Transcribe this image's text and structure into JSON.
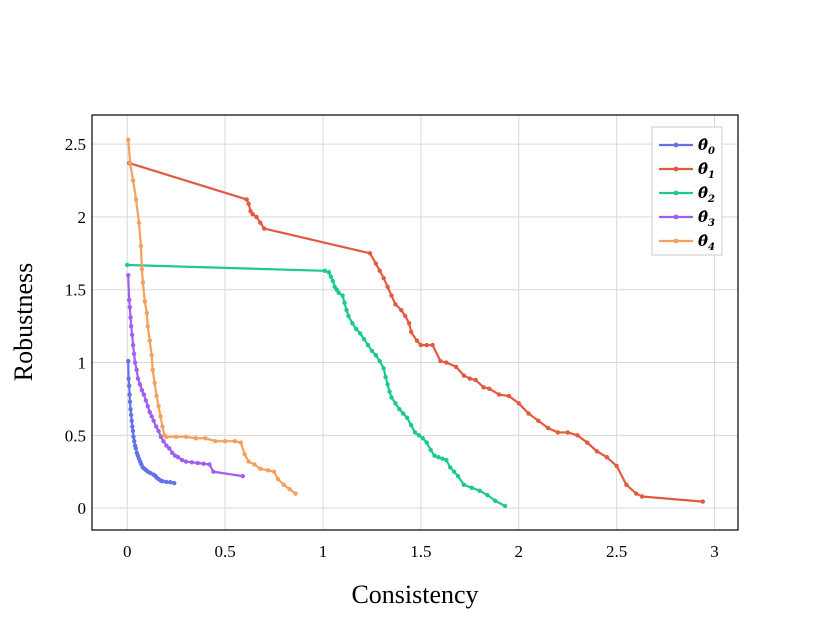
{
  "chart_data": {
    "type": "line",
    "title": "",
    "xlabel": "Consistency",
    "ylabel": "Robustness",
    "xlim": [
      -0.18,
      3.12
    ],
    "ylim": [
      -0.15,
      2.7
    ],
    "grid": true,
    "legend_position": "top-right",
    "x_ticks": [
      {
        "value": 0,
        "label": "0"
      },
      {
        "value": 0.5,
        "label": "0.5"
      },
      {
        "value": 1,
        "label": "1"
      },
      {
        "value": 1.5,
        "label": "1.5"
      },
      {
        "value": 2,
        "label": "2"
      },
      {
        "value": 2.5,
        "label": "2.5"
      },
      {
        "value": 3,
        "label": "3"
      }
    ],
    "y_ticks": [
      {
        "value": 0,
        "label": "0"
      },
      {
        "value": 0.5,
        "label": "0.5"
      },
      {
        "value": 1,
        "label": "1"
      },
      {
        "value": 1.5,
        "label": "1.5"
      },
      {
        "value": 2,
        "label": "2"
      },
      {
        "value": 2.5,
        "label": "2.5"
      }
    ],
    "series": [
      {
        "name": "θ̂₀",
        "base": "θ̂",
        "sub": "0",
        "color": "#6272e8",
        "points": [
          [
            0.005,
            1.01
          ],
          [
            0.007,
            0.89
          ],
          [
            0.01,
            0.84
          ],
          [
            0.012,
            0.78
          ],
          [
            0.014,
            0.73
          ],
          [
            0.017,
            0.68
          ],
          [
            0.02,
            0.64
          ],
          [
            0.023,
            0.6
          ],
          [
            0.026,
            0.56
          ],
          [
            0.029,
            0.53
          ],
          [
            0.032,
            0.49
          ],
          [
            0.036,
            0.46
          ],
          [
            0.04,
            0.43
          ],
          [
            0.044,
            0.41
          ],
          [
            0.049,
            0.38
          ],
          [
            0.054,
            0.36
          ],
          [
            0.06,
            0.34
          ],
          [
            0.066,
            0.32
          ],
          [
            0.072,
            0.3
          ],
          [
            0.08,
            0.28
          ],
          [
            0.088,
            0.27
          ],
          [
            0.097,
            0.26
          ],
          [
            0.106,
            0.25
          ],
          [
            0.12,
            0.24
          ],
          [
            0.135,
            0.23
          ],
          [
            0.145,
            0.22
          ],
          [
            0.15,
            0.21
          ],
          [
            0.16,
            0.2
          ],
          [
            0.17,
            0.19
          ],
          [
            0.18,
            0.185
          ],
          [
            0.2,
            0.18
          ],
          [
            0.22,
            0.178
          ],
          [
            0.24,
            0.172
          ]
        ]
      },
      {
        "name": "θ̂₁",
        "base": "θ̂",
        "sub": "1",
        "color": "#e25a40",
        "points": [
          [
            0.01,
            2.37
          ],
          [
            0.61,
            2.12
          ],
          [
            0.62,
            2.09
          ],
          [
            0.63,
            2.04
          ],
          [
            0.64,
            2.02
          ],
          [
            0.66,
            2.0
          ],
          [
            0.68,
            1.96
          ],
          [
            0.7,
            1.92
          ],
          [
            1.24,
            1.75
          ],
          [
            1.27,
            1.68
          ],
          [
            1.29,
            1.63
          ],
          [
            1.31,
            1.58
          ],
          [
            1.33,
            1.52
          ],
          [
            1.35,
            1.46
          ],
          [
            1.37,
            1.4
          ],
          [
            1.4,
            1.36
          ],
          [
            1.42,
            1.32
          ],
          [
            1.44,
            1.27
          ],
          [
            1.45,
            1.21
          ],
          [
            1.48,
            1.15
          ],
          [
            1.5,
            1.12
          ],
          [
            1.53,
            1.12
          ],
          [
            1.56,
            1.12
          ],
          [
            1.6,
            1.01
          ],
          [
            1.63,
            1.0
          ],
          [
            1.68,
            0.97
          ],
          [
            1.72,
            0.91
          ],
          [
            1.75,
            0.89
          ],
          [
            1.78,
            0.88
          ],
          [
            1.82,
            0.83
          ],
          [
            1.85,
            0.82
          ],
          [
            1.9,
            0.78
          ],
          [
            1.95,
            0.77
          ],
          [
            2.0,
            0.72
          ],
          [
            2.05,
            0.65
          ],
          [
            2.1,
            0.6
          ],
          [
            2.15,
            0.55
          ],
          [
            2.2,
            0.52
          ],
          [
            2.25,
            0.52
          ],
          [
            2.3,
            0.5
          ],
          [
            2.35,
            0.45
          ],
          [
            2.4,
            0.39
          ],
          [
            2.45,
            0.35
          ],
          [
            2.5,
            0.29
          ],
          [
            2.55,
            0.16
          ],
          [
            2.6,
            0.1
          ],
          [
            2.63,
            0.08
          ],
          [
            2.94,
            0.045
          ]
        ]
      },
      {
        "name": "θ̂₂",
        "base": "θ̂",
        "sub": "2",
        "color": "#1dc891",
        "points": [
          [
            0.0,
            1.67
          ],
          [
            1.01,
            1.63
          ],
          [
            1.03,
            1.62
          ],
          [
            1.04,
            1.59
          ],
          [
            1.05,
            1.56
          ],
          [
            1.06,
            1.52
          ],
          [
            1.07,
            1.5
          ],
          [
            1.08,
            1.48
          ],
          [
            1.1,
            1.46
          ],
          [
            1.11,
            1.41
          ],
          [
            1.12,
            1.36
          ],
          [
            1.13,
            1.32
          ],
          [
            1.15,
            1.27
          ],
          [
            1.17,
            1.23
          ],
          [
            1.19,
            1.2
          ],
          [
            1.21,
            1.16
          ],
          [
            1.23,
            1.12
          ],
          [
            1.25,
            1.08
          ],
          [
            1.27,
            1.05
          ],
          [
            1.29,
            1.01
          ],
          [
            1.31,
            0.96
          ],
          [
            1.32,
            0.9
          ],
          [
            1.33,
            0.85
          ],
          [
            1.34,
            0.8
          ],
          [
            1.35,
            0.76
          ],
          [
            1.37,
            0.72
          ],
          [
            1.39,
            0.68
          ],
          [
            1.41,
            0.65
          ],
          [
            1.43,
            0.62
          ],
          [
            1.45,
            0.57
          ],
          [
            1.47,
            0.52
          ],
          [
            1.49,
            0.5
          ],
          [
            1.51,
            0.48
          ],
          [
            1.53,
            0.45
          ],
          [
            1.55,
            0.4
          ],
          [
            1.57,
            0.36
          ],
          [
            1.59,
            0.35
          ],
          [
            1.61,
            0.34
          ],
          [
            1.63,
            0.33
          ],
          [
            1.65,
            0.28
          ],
          [
            1.67,
            0.25
          ],
          [
            1.69,
            0.22
          ],
          [
            1.72,
            0.16
          ],
          [
            1.76,
            0.14
          ],
          [
            1.8,
            0.12
          ],
          [
            1.84,
            0.09
          ],
          [
            1.88,
            0.05
          ],
          [
            1.93,
            0.015
          ]
        ]
      },
      {
        "name": "θ̂₃",
        "base": "θ̂",
        "sub": "3",
        "color": "#a05ff0",
        "points": [
          [
            0.005,
            1.6
          ],
          [
            0.01,
            1.43
          ],
          [
            0.013,
            1.38
          ],
          [
            0.017,
            1.31
          ],
          [
            0.02,
            1.25
          ],
          [
            0.025,
            1.19
          ],
          [
            0.03,
            1.12
          ],
          [
            0.035,
            1.06
          ],
          [
            0.04,
            1.0
          ],
          [
            0.048,
            0.95
          ],
          [
            0.055,
            0.89
          ],
          [
            0.065,
            0.85
          ],
          [
            0.075,
            0.81
          ],
          [
            0.085,
            0.78
          ],
          [
            0.095,
            0.74
          ],
          [
            0.105,
            0.7
          ],
          [
            0.115,
            0.66
          ],
          [
            0.125,
            0.63
          ],
          [
            0.135,
            0.6
          ],
          [
            0.148,
            0.56
          ],
          [
            0.16,
            0.53
          ],
          [
            0.172,
            0.49
          ],
          [
            0.185,
            0.46
          ],
          [
            0.2,
            0.43
          ],
          [
            0.215,
            0.41
          ],
          [
            0.23,
            0.38
          ],
          [
            0.245,
            0.36
          ],
          [
            0.26,
            0.35
          ],
          [
            0.28,
            0.33
          ],
          [
            0.3,
            0.32
          ],
          [
            0.33,
            0.315
          ],
          [
            0.36,
            0.31
          ],
          [
            0.39,
            0.305
          ],
          [
            0.42,
            0.3
          ],
          [
            0.44,
            0.25
          ],
          [
            0.59,
            0.22
          ]
        ]
      },
      {
        "name": "θ̂₄",
        "base": "θ̂",
        "sub": "4",
        "color": "#f5a05c",
        "points": [
          [
            0.005,
            2.53
          ],
          [
            0.015,
            2.37
          ],
          [
            0.03,
            2.25
          ],
          [
            0.045,
            2.12
          ],
          [
            0.06,
            1.96
          ],
          [
            0.07,
            1.8
          ],
          [
            0.075,
            1.64
          ],
          [
            0.08,
            1.55
          ],
          [
            0.09,
            1.42
          ],
          [
            0.1,
            1.34
          ],
          [
            0.105,
            1.25
          ],
          [
            0.115,
            1.15
          ],
          [
            0.125,
            1.05
          ],
          [
            0.13,
            0.95
          ],
          [
            0.14,
            0.86
          ],
          [
            0.15,
            0.77
          ],
          [
            0.16,
            0.7
          ],
          [
            0.17,
            0.63
          ],
          [
            0.18,
            0.56
          ],
          [
            0.19,
            0.5
          ],
          [
            0.2,
            0.49
          ],
          [
            0.25,
            0.49
          ],
          [
            0.3,
            0.49
          ],
          [
            0.35,
            0.48
          ],
          [
            0.4,
            0.48
          ],
          [
            0.45,
            0.46
          ],
          [
            0.5,
            0.46
          ],
          [
            0.55,
            0.46
          ],
          [
            0.58,
            0.45
          ],
          [
            0.6,
            0.37
          ],
          [
            0.62,
            0.32
          ],
          [
            0.65,
            0.3
          ],
          [
            0.68,
            0.27
          ],
          [
            0.72,
            0.26
          ],
          [
            0.75,
            0.25
          ],
          [
            0.77,
            0.2
          ],
          [
            0.8,
            0.16
          ],
          [
            0.83,
            0.13
          ],
          [
            0.86,
            0.1
          ]
        ]
      }
    ]
  }
}
